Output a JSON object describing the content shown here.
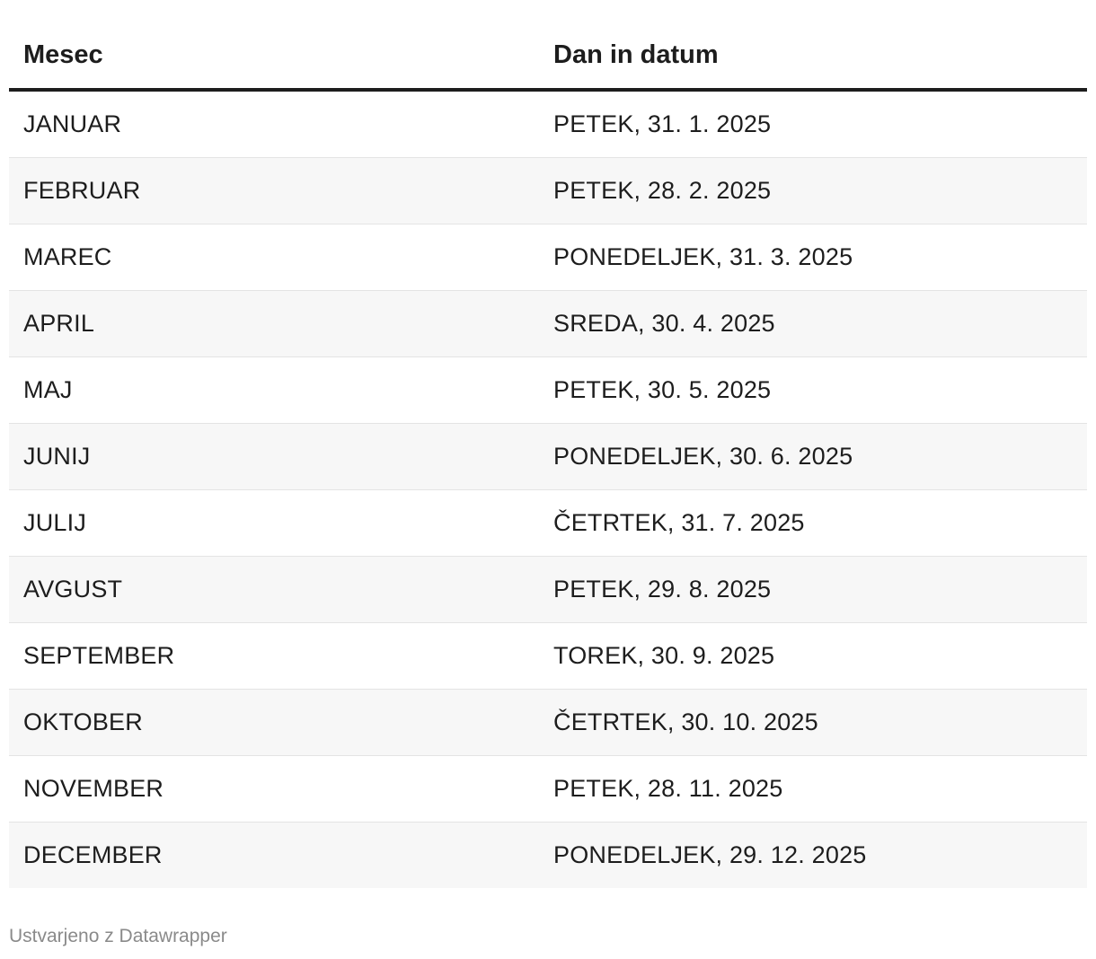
{
  "table": {
    "headers": [
      "Mesec",
      "Dan in datum"
    ],
    "rows": [
      [
        "JANUAR",
        "PETEK, 31. 1. 2025"
      ],
      [
        "FEBRUAR",
        "PETEK, 28. 2. 2025"
      ],
      [
        "MAREC",
        "PONEDELJEK, 31. 3. 2025"
      ],
      [
        "APRIL",
        "SREDA, 30. 4. 2025"
      ],
      [
        "MAJ",
        "PETEK, 30. 5. 2025"
      ],
      [
        "JUNIJ",
        "PONEDELJEK, 30. 6. 2025"
      ],
      [
        "JULIJ",
        "ČETRTEK, 31. 7. 2025"
      ],
      [
        "AVGUST",
        "PETEK, 29. 8. 2025"
      ],
      [
        "SEPTEMBER",
        "TOREK, 30. 9. 2025"
      ],
      [
        "OKTOBER",
        "ČETRTEK, 30. 10. 2025"
      ],
      [
        "NOVEMBER",
        "PETEK, 28. 11. 2025"
      ],
      [
        "DECEMBER",
        "PONEDELJEK, 29. 12. 2025"
      ]
    ]
  },
  "footer": {
    "credit": "Ustvarjeno z Datawrapper"
  },
  "colors": {
    "text": "#1d1d1d",
    "stripe": "#f7f7f7",
    "header_rule": "#1d1d1d",
    "row_divider": "#e4e4e4",
    "footer_text": "#8a8a8a"
  }
}
